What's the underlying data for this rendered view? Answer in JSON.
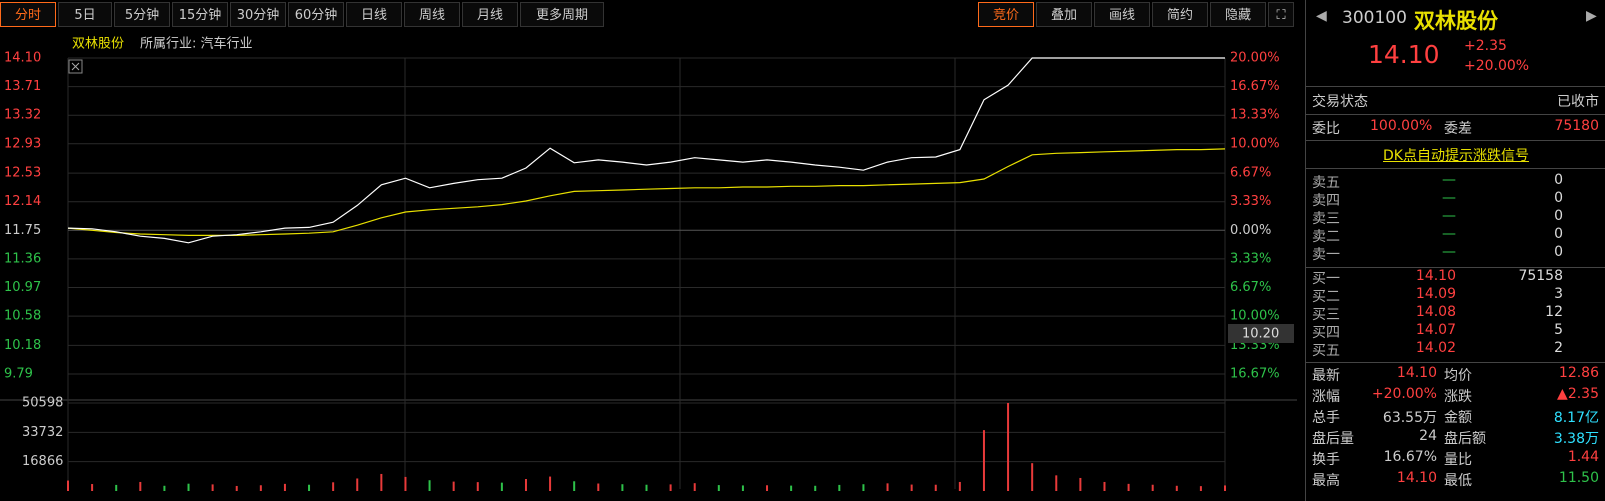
{
  "toolbar": {
    "periods": [
      "分时",
      "5日",
      "5分钟",
      "15分钟",
      "30分钟",
      "60分钟",
      "日线",
      "周线",
      "月线",
      "更多周期"
    ],
    "tools": [
      "竞价",
      "叠加",
      "画线",
      "简约",
      "隐藏"
    ]
  },
  "chart_data": {
    "type": "line",
    "title": "双林股份",
    "subtitle": "所属行业: 汽车行业",
    "price": {
      "color": "#ffffff",
      "values": [
        11.78,
        11.77,
        11.73,
        11.67,
        11.64,
        11.58,
        11.67,
        11.69,
        11.73,
        11.78,
        11.79,
        11.86,
        12.09,
        12.37,
        12.46,
        12.33,
        12.39,
        12.44,
        12.46,
        12.6,
        12.87,
        12.67,
        12.71,
        12.68,
        12.64,
        12.68,
        12.74,
        12.71,
        12.68,
        12.71,
        12.68,
        12.64,
        12.61,
        12.57,
        12.68,
        12.74,
        12.75,
        12.85,
        13.53,
        13.73,
        14.1,
        14.1,
        14.1,
        14.1,
        14.1,
        14.1,
        14.1,
        14.1,
        14.1
      ]
    },
    "average": {
      "color": "#e8e000",
      "values": [
        11.78,
        11.75,
        11.72,
        11.7,
        11.69,
        11.68,
        11.68,
        11.68,
        11.69,
        11.7,
        11.71,
        11.73,
        11.82,
        11.92,
        12.0,
        12.03,
        12.05,
        12.07,
        12.1,
        12.15,
        12.22,
        12.28,
        12.29,
        12.3,
        12.31,
        12.32,
        12.33,
        12.33,
        12.34,
        12.34,
        12.35,
        12.35,
        12.36,
        12.36,
        12.37,
        12.38,
        12.39,
        12.4,
        12.45,
        12.62,
        12.78,
        12.8,
        12.81,
        12.82,
        12.83,
        12.84,
        12.85,
        12.85,
        12.86
      ]
    },
    "ylim": [
      9.79,
      14.1
    ],
    "yticks": [
      {
        "value": 14.1,
        "label": "14.10"
      },
      13.71,
      13.32,
      12.93,
      12.53,
      12.14,
      11.75,
      11.36,
      10.97,
      10.58,
      10.18,
      9.79
    ],
    "pct_labels": [
      "20.00%",
      "16.67%",
      "13.33%",
      "10.00%",
      "6.67%",
      "3.33%",
      "0.00%",
      "3.33%",
      "6.67%",
      "10.00%",
      "13.33%",
      "16.67%"
    ],
    "cursor_label": "10.20",
    "volume": {
      "ylim": [
        0,
        50598
      ],
      "yticks": [
        50598,
        33732,
        16866
      ],
      "values": [
        6000,
        4000,
        3500,
        5200,
        3000,
        4200,
        3800,
        2900,
        3300,
        4100,
        3600,
        5000,
        7200,
        9800,
        8100,
        6200,
        5400,
        5100,
        4800,
        6900,
        8300,
        5600,
        4300,
        3900,
        3600,
        3800,
        4500,
        3400,
        3200,
        3300,
        3100,
        3000,
        3500,
        3900,
        4400,
        3700,
        3600,
        5200,
        35000,
        50598,
        16000,
        9000,
        7500,
        5200,
        4100,
        3600,
        3000,
        2800,
        3200
      ],
      "colors": [
        "#e83a3a",
        "#e83a3a",
        "#2ec24a",
        "#e83a3a",
        "#2ec24a",
        "#2ec24a",
        "#e83a3a",
        "#e83a3a",
        "#e83a3a",
        "#e83a3a",
        "#2ec24a",
        "#e83a3a",
        "#e83a3a",
        "#e83a3a",
        "#e83a3a",
        "#2ec24a",
        "#e83a3a",
        "#e83a3a",
        "#2ec24a",
        "#e83a3a",
        "#e83a3a",
        "#2ec24a",
        "#e83a3a",
        "#2ec24a",
        "#2ec24a",
        "#e83a3a",
        "#e83a3a",
        "#2ec24a",
        "#2ec24a",
        "#e83a3a",
        "#2ec24a",
        "#2ec24a",
        "#2ec24a",
        "#2ec24a",
        "#e83a3a",
        "#e83a3a",
        "#e83a3a",
        "#e83a3a",
        "#e83a3a",
        "#e83a3a",
        "#e83a3a",
        "#e83a3a",
        "#e83a3a",
        "#e83a3a",
        "#e83a3a",
        "#e83a3a",
        "#e83a3a",
        "#e83a3a",
        "#e83a3a"
      ]
    }
  },
  "panel": {
    "code": "300100",
    "name": "双林股份",
    "price": "14.10",
    "change": "+2.35",
    "change_pct": "+20.00%",
    "status": [
      "交易状态",
      "已收市"
    ],
    "ratio": [
      "委比",
      "100.00%",
      "委差",
      "75180"
    ],
    "signal": "DK点自动提示涨跌信号",
    "sells": [
      [
        "卖五",
        "—",
        "0"
      ],
      [
        "卖四",
        "—",
        "0"
      ],
      [
        "卖三",
        "—",
        "0"
      ],
      [
        "卖二",
        "—",
        "0"
      ],
      [
        "卖一",
        "—",
        "0"
      ]
    ],
    "buys": [
      [
        "买一",
        "14.10",
        "75158"
      ],
      [
        "买二",
        "14.09",
        "3"
      ],
      [
        "买三",
        "14.08",
        "12"
      ],
      [
        "买四",
        "14.07",
        "5"
      ],
      [
        "买五",
        "14.02",
        "2"
      ]
    ],
    "stats": [
      [
        "最新",
        "14.10",
        "均价",
        "12.86"
      ],
      [
        "涨幅",
        "+20.00%",
        "涨跌",
        "▲2.35"
      ],
      [
        "总手",
        "63.55万",
        "金额",
        "8.17亿"
      ],
      [
        "盘后量",
        "24",
        "盘后额",
        "3.38万"
      ],
      [
        "换手",
        "16.67%",
        "量比",
        "1.44"
      ],
      [
        "最高",
        "14.10",
        "最低",
        "11.50"
      ]
    ]
  }
}
